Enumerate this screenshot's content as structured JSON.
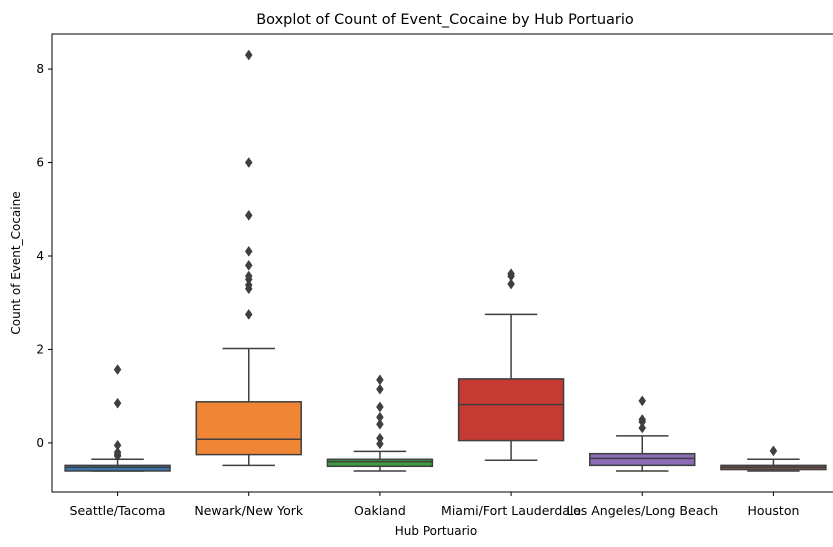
{
  "chart_data": {
    "type": "boxplot",
    "title": "Boxplot of Count of Event_Cocaine by Hub Portuario",
    "xlabel": "Hub Portuario",
    "ylabel": "Count of Event_Cocaine",
    "ylim": [
      -1.05,
      8.75
    ],
    "yticks": [
      0,
      2,
      4,
      6,
      8
    ],
    "grid": false,
    "categories": [
      "Seattle/Tacoma",
      "Newark/New York",
      "Oakland",
      "Miami/Fort Lauderdale",
      "Los Angeles/Long Beach",
      "Houston"
    ],
    "colors": [
      "#3a75af",
      "#ef8535",
      "#3f9d3f",
      "#c53a32",
      "#8d6bb8",
      "#84584e"
    ],
    "boxes": [
      {
        "whisker_low": -0.6,
        "q1": -0.6,
        "median": -0.52,
        "q3": -0.48,
        "whisker_high": -0.35,
        "outliers": [
          1.57,
          0.85,
          -0.05,
          -0.2,
          -0.25,
          -0.28
        ]
      },
      {
        "whisker_low": -0.48,
        "q1": -0.25,
        "median": 0.08,
        "q3": 0.88,
        "whisker_high": 2.02,
        "outliers": [
          2.75,
          3.3,
          3.38,
          3.5,
          3.57,
          3.8,
          4.1,
          4.87,
          6.0,
          8.3
        ]
      },
      {
        "whisker_low": -0.6,
        "q1": -0.5,
        "median": -0.4,
        "q3": -0.35,
        "whisker_high": -0.18,
        "outliers": [
          -0.02,
          0.1,
          0.4,
          0.55,
          0.77,
          1.15,
          1.35
        ]
      },
      {
        "whisker_low": -0.37,
        "q1": 0.05,
        "median": 0.82,
        "q3": 1.37,
        "whisker_high": 2.75,
        "outliers": [
          3.4,
          3.57,
          3.62
        ]
      },
      {
        "whisker_low": -0.6,
        "q1": -0.48,
        "median": -0.33,
        "q3": -0.23,
        "whisker_high": 0.15,
        "outliers": [
          0.32,
          0.45,
          0.5,
          0.9
        ]
      },
      {
        "whisker_low": -0.6,
        "q1": -0.57,
        "median": -0.52,
        "q3": -0.48,
        "whisker_high": -0.35,
        "outliers": [
          -0.17
        ]
      }
    ]
  }
}
